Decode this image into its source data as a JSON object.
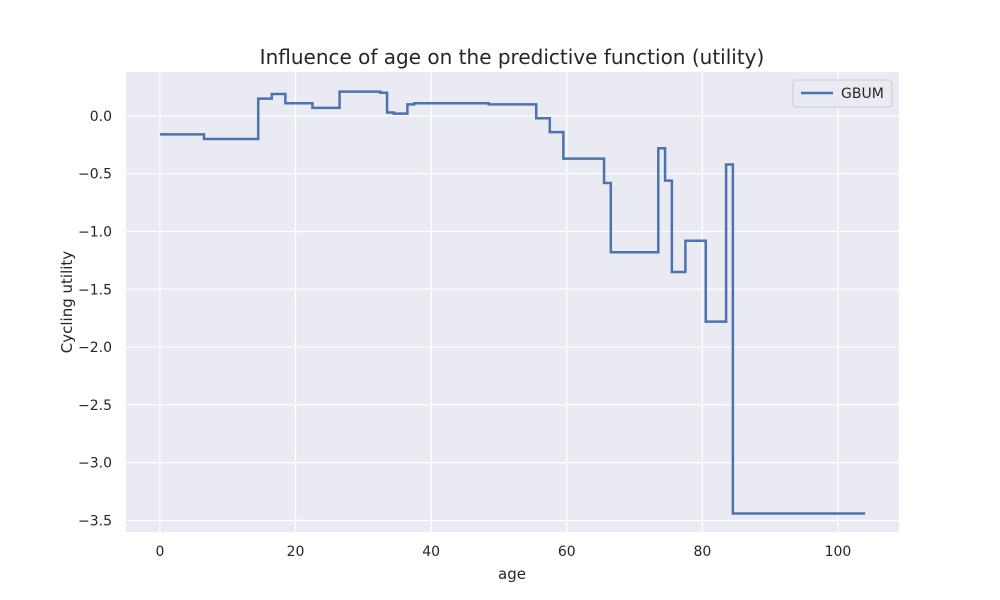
{
  "chart_data": {
    "type": "line",
    "title": "Influence of age on the predictive function (utility)",
    "xlabel": "age",
    "ylabel": "Cycling utility",
    "xlim": [
      -5,
      109
    ],
    "ylim": [
      -3.6,
      0.38
    ],
    "x_ticks": [
      0,
      20,
      40,
      60,
      80,
      100
    ],
    "y_ticks": [
      0.0,
      -0.5,
      -1.0,
      -1.5,
      -2.0,
      -2.5,
      -3.0,
      -3.5
    ],
    "x_tick_labels": [
      "0",
      "20",
      "40",
      "60",
      "80",
      "100"
    ],
    "y_tick_labels": [
      "0.0",
      "−0.5",
      "−1.0",
      "−1.5",
      "−2.0",
      "−2.5",
      "−3.0",
      "−3.5"
    ],
    "grid": true,
    "legend_position": "top-right",
    "series": [
      {
        "name": "GBUM",
        "color": "#4c72b0",
        "drawstyle": "steps-post",
        "x": [
          0,
          6.5,
          14.5,
          16.5,
          18.5,
          22.5,
          26.5,
          32.5,
          33.5,
          34.5,
          36.5,
          37.5,
          48.5,
          55.5,
          57.5,
          59.5,
          65.5,
          66.5,
          73.5,
          74.5,
          75.5,
          77.5,
          80.5,
          83.5,
          84.5,
          104
        ],
        "y": [
          -0.16,
          -0.2,
          0.15,
          0.19,
          0.11,
          0.07,
          0.21,
          0.2,
          0.03,
          0.02,
          0.1,
          0.11,
          0.1,
          -0.02,
          -0.14,
          -0.37,
          -0.58,
          -1.18,
          -0.28,
          -0.56,
          -1.35,
          -1.08,
          -1.78,
          -0.42,
          -3.44,
          -3.44
        ]
      }
    ]
  }
}
